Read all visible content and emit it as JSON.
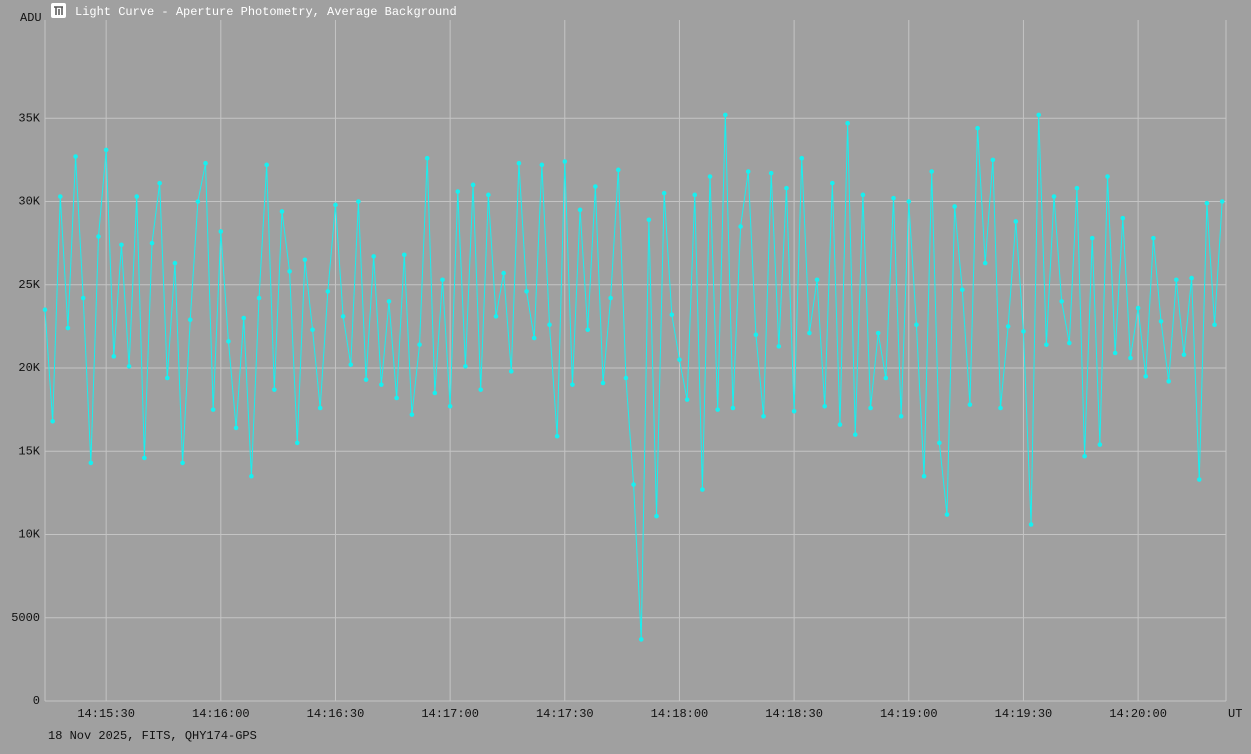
{
  "chart_data": {
    "type": "line",
    "title": "Light Curve - Aperture Photometry, Average Background",
    "y_label": "ADU",
    "x_label": "UT",
    "footer": "18 Nov 2025, FITS, QHY174-GPS",
    "grid": true,
    "xlim": [
      "14:15:14",
      "14:20:23"
    ],
    "xticks": [
      "14:15:30",
      "14:16:00",
      "14:16:30",
      "14:17:00",
      "14:17:30",
      "14:18:00",
      "14:18:30",
      "14:19:00",
      "14:19:30",
      "14:20:00"
    ],
    "ylim": [
      0,
      40900
    ],
    "yticks": [
      0,
      5000,
      {
        "value": 10000,
        "label": "10K"
      },
      {
        "value": 15000,
        "label": "15K"
      },
      {
        "value": 20000,
        "label": "20K"
      },
      {
        "value": 25000,
        "label": "25K"
      },
      {
        "value": 30000,
        "label": "30K"
      },
      {
        "value": 35000,
        "label": "35K"
      }
    ],
    "x": [
      "14:15:14",
      "14:15:16",
      "14:15:18",
      "14:15:20",
      "14:15:22",
      "14:15:24",
      "14:15:26",
      "14:15:28",
      "14:15:30",
      "14:15:32",
      "14:15:34",
      "14:15:36",
      "14:15:38",
      "14:15:40",
      "14:15:42",
      "14:15:44",
      "14:15:46",
      "14:15:48",
      "14:15:50",
      "14:15:52",
      "14:15:54",
      "14:15:56",
      "14:15:58",
      "14:16:00",
      "14:16:02",
      "14:16:04",
      "14:16:06",
      "14:16:08",
      "14:16:10",
      "14:16:12",
      "14:16:14",
      "14:16:16",
      "14:16:18",
      "14:16:20",
      "14:16:22",
      "14:16:24",
      "14:16:26",
      "14:16:28",
      "14:16:30",
      "14:16:32",
      "14:16:34",
      "14:16:36",
      "14:16:38",
      "14:16:40",
      "14:16:42",
      "14:16:44",
      "14:16:46",
      "14:16:48",
      "14:16:50",
      "14:16:52",
      "14:16:54",
      "14:16:56",
      "14:16:58",
      "14:17:00",
      "14:17:02",
      "14:17:04",
      "14:17:06",
      "14:17:08",
      "14:17:10",
      "14:17:12",
      "14:17:14",
      "14:17:16",
      "14:17:18",
      "14:17:20",
      "14:17:22",
      "14:17:24",
      "14:17:26",
      "14:17:28",
      "14:17:30",
      "14:17:32",
      "14:17:34",
      "14:17:36",
      "14:17:38",
      "14:17:40",
      "14:17:42",
      "14:17:44",
      "14:17:46",
      "14:17:48",
      "14:17:50",
      "14:17:52",
      "14:17:54",
      "14:17:56",
      "14:17:58",
      "14:18:00",
      "14:18:02",
      "14:18:04",
      "14:18:06",
      "14:18:08",
      "14:18:10",
      "14:18:12",
      "14:18:14",
      "14:18:16",
      "14:18:18",
      "14:18:20",
      "14:18:22",
      "14:18:24",
      "14:18:26",
      "14:18:28",
      "14:18:30",
      "14:18:32",
      "14:18:34",
      "14:18:36",
      "14:18:38",
      "14:18:40",
      "14:18:42",
      "14:18:44",
      "14:18:46",
      "14:18:48",
      "14:18:50",
      "14:18:52",
      "14:18:54",
      "14:18:56",
      "14:18:58",
      "14:19:00",
      "14:19:02",
      "14:19:04",
      "14:19:06",
      "14:19:08",
      "14:19:10",
      "14:19:12",
      "14:19:14",
      "14:19:16",
      "14:19:18",
      "14:19:20",
      "14:19:22",
      "14:19:24",
      "14:19:26",
      "14:19:28",
      "14:19:30",
      "14:19:32",
      "14:19:34",
      "14:19:36",
      "14:19:38",
      "14:19:40",
      "14:19:42",
      "14:19:44",
      "14:19:46",
      "14:19:48",
      "14:19:50",
      "14:19:52",
      "14:19:54",
      "14:19:56",
      "14:19:58",
      "14:20:00",
      "14:20:02",
      "14:20:04",
      "14:20:06",
      "14:20:08",
      "14:20:10",
      "14:20:12",
      "14:20:14",
      "14:20:16",
      "14:20:18",
      "14:20:20",
      "14:20:22"
    ],
    "series": [
      {
        "color": "#17f0f0",
        "values": [
          23500,
          16800,
          30300,
          22400,
          32700,
          24200,
          14300,
          27900,
          33100,
          20700,
          27400,
          20100,
          30300,
          14600,
          27500,
          31100,
          19400,
          26300,
          14300,
          22900,
          30000,
          32300,
          17500,
          28200,
          21600,
          16400,
          23000,
          13500,
          24200,
          32200,
          18700,
          29400,
          25800,
          15500,
          26500,
          22300,
          17600,
          24600,
          29800,
          23100,
          20200,
          30000,
          19300,
          26700,
          19000,
          24000,
          18200,
          26800,
          17200,
          21400,
          32600,
          18500,
          25300,
          17700,
          30600,
          20100,
          31000,
          18700,
          30400,
          23100,
          25700,
          19800,
          32300,
          24600,
          21800,
          32200,
          22600,
          15900,
          32400,
          19000,
          29500,
          22300,
          30900,
          19100,
          24200,
          31900,
          19400,
          13000,
          3700,
          28900,
          11100,
          30500,
          23200,
          20500,
          18100,
          30400,
          12700,
          31500,
          17500,
          35200,
          17600,
          28500,
          31800,
          22000,
          17100,
          31700,
          21300,
          30800,
          17400,
          32600,
          22100,
          25300,
          17700,
          31100,
          16600,
          34700,
          16000,
          30400,
          17600,
          22100,
          19400,
          30200,
          17100,
          30000,
          22600,
          13500,
          31800,
          15500,
          11200,
          29700,
          24700,
          17800,
          34400,
          26300,
          32500,
          17600,
          22500,
          28800,
          22200,
          10600,
          35200,
          21400,
          30300,
          24000,
          21500,
          30800,
          14700,
          27800,
          15400,
          31500,
          20900,
          29000,
          20600,
          23600,
          19500,
          27800,
          22800,
          19200,
          25300,
          20800,
          25400,
          13300,
          29900,
          22600,
          30000
        ]
      }
    ]
  }
}
